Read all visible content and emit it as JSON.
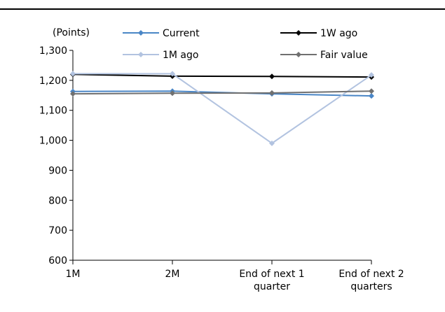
{
  "chart_data": {
    "type": "line",
    "unit_label": "(Points)",
    "categories": [
      "1M",
      "2M",
      "End of next 1 quarter",
      "End of next 2 quarters"
    ],
    "category_lines": [
      [
        "1M"
      ],
      [
        "2M"
      ],
      [
        "End of next 1",
        "quarter"
      ],
      [
        "End of next 2",
        "quarters"
      ]
    ],
    "ylim": [
      600,
      1300
    ],
    "yticks": [
      600,
      700,
      800,
      900,
      1000,
      1100,
      1200,
      1300
    ],
    "ytick_labels": [
      "600",
      "700",
      "800",
      "900",
      "1,000",
      "1,100",
      "1,200",
      "1,300"
    ],
    "grid": false,
    "legend_position": "top",
    "series": [
      {
        "name": "Current",
        "color": "#4a86c6",
        "values": [
          1163,
          1164,
          1155,
          1148
        ]
      },
      {
        "name": "1W ago",
        "color": "#000000",
        "values": [
          1220,
          1214,
          1213,
          1211
        ]
      },
      {
        "name": "1M ago",
        "color": "#b2c3e0",
        "values": [
          1222,
          1222,
          990,
          1218
        ]
      },
      {
        "name": "Fair value",
        "color": "#707070",
        "values": [
          1155,
          1157,
          1158,
          1164
        ]
      }
    ]
  }
}
